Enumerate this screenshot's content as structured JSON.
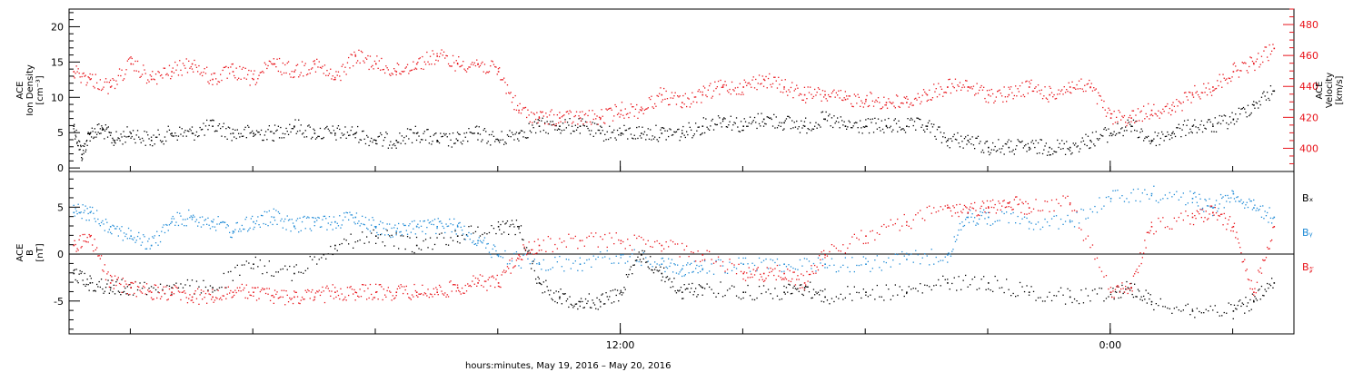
{
  "chart_data": [
    {
      "type": "scatter",
      "xlabel": "hours:minutes, May 19, 2016 – May 20, 2016",
      "x_range_hours": [
        -1.5,
        28.5
      ],
      "x_ticks": [
        {
          "hour": 12,
          "label": "12:00"
        },
        {
          "hour": 24,
          "label": "0:00"
        }
      ],
      "left_axis": {
        "label_lines": [
          "ACE",
          "Ion Density",
          "[cm⁻³]"
        ],
        "ylim": [
          -0.5,
          22.5
        ],
        "ticks": [
          0,
          5,
          10,
          15,
          20
        ]
      },
      "right_axis": {
        "label_lines": [
          "ACE",
          "Velocity",
          "[km/s]"
        ],
        "ylim": [
          385,
          490
        ],
        "ticks": [
          400,
          420,
          440,
          460,
          480
        ],
        "color": "#e8141b"
      },
      "series": [
        {
          "axis": "left",
          "color": "#000000",
          "points": [
            [
              -1.4,
              6
            ],
            [
              -1.2,
              2
            ],
            [
              -1.0,
              5
            ],
            [
              -0.7,
              5.5
            ],
            [
              -0.4,
              4
            ],
            [
              0,
              5
            ],
            [
              0.5,
              4
            ],
            [
              1,
              5
            ],
            [
              1.5,
              5
            ],
            [
              2,
              6
            ],
            [
              2.5,
              5
            ],
            [
              3,
              5
            ],
            [
              3.5,
              5
            ],
            [
              4,
              6
            ],
            [
              4.5,
              5
            ],
            [
              5,
              5
            ],
            [
              5.5,
              5
            ],
            [
              6,
              4
            ],
            [
              6.5,
              4
            ],
            [
              7,
              5
            ],
            [
              7.5,
              4
            ],
            [
              8,
              4
            ],
            [
              8.5,
              5
            ],
            [
              9,
              4
            ],
            [
              9.5,
              5
            ],
            [
              10,
              6
            ],
            [
              10.5,
              6
            ],
            [
              11,
              6
            ],
            [
              11.5,
              5
            ],
            [
              12,
              5
            ],
            [
              12.5,
              5
            ],
            [
              13,
              5
            ],
            [
              13.5,
              5
            ],
            [
              14,
              6
            ],
            [
              14.5,
              7
            ],
            [
              15,
              6
            ],
            [
              15.5,
              7
            ],
            [
              16,
              6.5
            ],
            [
              16.5,
              6
            ],
            [
              17,
              7
            ],
            [
              17.5,
              6
            ],
            [
              18,
              6
            ],
            [
              18.5,
              6
            ],
            [
              19,
              6
            ],
            [
              19.5,
              6
            ],
            [
              20,
              4
            ],
            [
              20.5,
              4
            ],
            [
              21,
              3
            ],
            [
              21.5,
              3
            ],
            [
              22,
              3
            ],
            [
              22.5,
              3
            ],
            [
              23,
              3
            ],
            [
              23.5,
              4
            ],
            [
              24,
              5
            ],
            [
              24.5,
              6
            ],
            [
              25,
              4
            ],
            [
              25.5,
              5
            ],
            [
              26,
              6
            ],
            [
              26.5,
              6
            ],
            [
              27,
              7
            ],
            [
              27.5,
              9
            ],
            [
              28,
              11
            ]
          ]
        },
        {
          "axis": "right",
          "color": "#e8141b",
          "points": [
            [
              -1.4,
              450
            ],
            [
              -1.0,
              445
            ],
            [
              -0.5,
              440
            ],
            [
              0,
              455
            ],
            [
              0.5,
              445
            ],
            [
              1,
              450
            ],
            [
              1.5,
              455
            ],
            [
              2,
              445
            ],
            [
              2.5,
              450
            ],
            [
              3,
              445
            ],
            [
              3.5,
              455
            ],
            [
              4,
              450
            ],
            [
              4.5,
              455
            ],
            [
              5,
              445
            ],
            [
              5.5,
              460
            ],
            [
              6,
              455
            ],
            [
              6.5,
              450
            ],
            [
              7,
              455
            ],
            [
              7.5,
              460
            ],
            [
              8,
              455
            ],
            [
              8.5,
              455
            ],
            [
              9,
              450
            ],
            [
              9.5,
              425
            ],
            [
              10,
              420
            ],
            [
              10.5,
              420
            ],
            [
              11,
              420
            ],
            [
              11.5,
              420
            ],
            [
              12,
              425
            ],
            [
              12.5,
              425
            ],
            [
              13,
              435
            ],
            [
              13.5,
              430
            ],
            [
              14,
              435
            ],
            [
              14.5,
              440
            ],
            [
              15,
              440
            ],
            [
              15.5,
              445
            ],
            [
              16,
              440
            ],
            [
              16.5,
              435
            ],
            [
              17,
              435
            ],
            [
              17.5,
              432
            ],
            [
              18,
              432
            ],
            [
              18.5,
              430
            ],
            [
              19,
              430
            ],
            [
              19.5,
              435
            ],
            [
              20,
              440
            ],
            [
              20.5,
              440
            ],
            [
              21,
              435
            ],
            [
              21.5,
              435
            ],
            [
              22,
              440
            ],
            [
              22.5,
              435
            ],
            [
              23,
              440
            ],
            [
              23.5,
              440
            ],
            [
              24,
              420
            ],
            [
              24.5,
              420
            ],
            [
              25,
              425
            ],
            [
              25.5,
              425
            ],
            [
              26,
              435
            ],
            [
              26.5,
              440
            ],
            [
              27,
              450
            ],
            [
              27.5,
              455
            ],
            [
              28,
              465
            ]
          ]
        }
      ]
    },
    {
      "type": "scatter",
      "left_axis": {
        "label_lines": [
          "ACE",
          "B",
          "[nT]"
        ],
        "ylim": [
          -8.5,
          8.8
        ],
        "ticks": [
          -5,
          0,
          5
        ]
      },
      "legend": [
        {
          "label": "Bₓ",
          "color": "#000000"
        },
        {
          "label": "Bᵧ",
          "color": "#1e8ad6"
        },
        {
          "label": "B𝓏",
          "color": "#e8141b"
        }
      ],
      "zero_line": true,
      "series": [
        {
          "color": "#000000",
          "points": [
            [
              -1.4,
              -2
            ],
            [
              -1.0,
              -3
            ],
            [
              -0.5,
              -3.5
            ],
            [
              0,
              -3.5
            ],
            [
              1,
              -3.5
            ],
            [
              2,
              -3.5
            ],
            [
              3,
              -1
            ],
            [
              4,
              -2
            ],
            [
              5,
              1
            ],
            [
              6,
              2
            ],
            [
              7,
              1
            ],
            [
              8,
              2
            ],
            [
              9,
              3
            ],
            [
              9.5,
              3
            ],
            [
              10,
              -3
            ],
            [
              10.5,
              -4.5
            ],
            [
              11,
              -5
            ],
            [
              11.5,
              -5
            ],
            [
              12,
              -4
            ],
            [
              12.5,
              0
            ],
            [
              13,
              -2
            ],
            [
              13.5,
              -4
            ],
            [
              14,
              -3.5
            ],
            [
              15,
              -4
            ],
            [
              16,
              -4
            ],
            [
              16.5,
              -3.5
            ],
            [
              17,
              -4.5
            ],
            [
              18,
              -4
            ],
            [
              19,
              -4
            ],
            [
              20,
              -3
            ],
            [
              21,
              -3
            ],
            [
              22,
              -4
            ],
            [
              23,
              -4.5
            ],
            [
              24,
              -4
            ],
            [
              24.5,
              -3.5
            ],
            [
              25,
              -5
            ],
            [
              26,
              -6
            ],
            [
              27,
              -6
            ],
            [
              27.5,
              -5
            ],
            [
              28,
              -3
            ]
          ]
        },
        {
          "color": "#1e8ad6",
          "points": [
            [
              -1.4,
              4.5
            ],
            [
              -1.0,
              4.5
            ],
            [
              -0.5,
              3
            ],
            [
              0,
              2
            ],
            [
              0.5,
              1
            ],
            [
              1,
              3.5
            ],
            [
              1.5,
              4
            ],
            [
              2,
              3.5
            ],
            [
              2.5,
              2.5
            ],
            [
              3,
              3.5
            ],
            [
              3.5,
              4
            ],
            [
              4,
              3
            ],
            [
              4.5,
              3.5
            ],
            [
              5,
              3.5
            ],
            [
              5.5,
              4
            ],
            [
              6,
              3
            ],
            [
              6.5,
              2.5
            ],
            [
              7,
              3
            ],
            [
              7.5,
              3
            ],
            [
              8,
              3
            ],
            [
              8.5,
              1.5
            ],
            [
              9,
              0
            ],
            [
              10,
              -1
            ],
            [
              11,
              -1
            ],
            [
              12,
              0
            ],
            [
              13,
              -1
            ],
            [
              13.5,
              -1.5
            ],
            [
              14,
              -1.5
            ],
            [
              15,
              -1
            ],
            [
              16,
              -1
            ],
            [
              17,
              -1
            ],
            [
              18,
              -1
            ],
            [
              19,
              -0.5
            ],
            [
              20,
              0
            ],
            [
              20.5,
              4
            ],
            [
              21,
              4
            ],
            [
              22,
              3.5
            ],
            [
              23,
              3.5
            ],
            [
              24,
              6
            ],
            [
              25,
              6.5
            ],
            [
              26,
              6
            ],
            [
              26.5,
              5
            ],
            [
              27,
              6.5
            ],
            [
              27.5,
              5
            ],
            [
              28,
              4
            ]
          ]
        },
        {
          "color": "#e8141b",
          "points": [
            [
              -1.4,
              1
            ],
            [
              -1.0,
              2
            ],
            [
              -0.5,
              -3
            ],
            [
              0,
              -3.5
            ],
            [
              0.5,
              -4
            ],
            [
              1,
              -4
            ],
            [
              1.5,
              -4.5
            ],
            [
              2,
              -4.5
            ],
            [
              2.5,
              -4
            ],
            [
              3,
              -4
            ],
            [
              3.5,
              -4.5
            ],
            [
              4,
              -4.5
            ],
            [
              4.5,
              -4.5
            ],
            [
              5,
              -4
            ],
            [
              5.5,
              -4
            ],
            [
              6,
              -4
            ],
            [
              6.5,
              -4
            ],
            [
              7,
              -4
            ],
            [
              7.5,
              -4
            ],
            [
              8,
              -3.5
            ],
            [
              8.5,
              -3
            ],
            [
              9,
              -3
            ],
            [
              9.5,
              0
            ],
            [
              10,
              1
            ],
            [
              11,
              1.5
            ],
            [
              12,
              1.5
            ],
            [
              13,
              1
            ],
            [
              14,
              0
            ],
            [
              15,
              -2
            ],
            [
              15.5,
              -2
            ],
            [
              16,
              -2
            ],
            [
              16.5,
              -3
            ],
            [
              17,
              0
            ],
            [
              18,
              2
            ],
            [
              19,
              3.5
            ],
            [
              20,
              5
            ],
            [
              20.5,
              4.5
            ],
            [
              21,
              5
            ],
            [
              21.5,
              5.5
            ],
            [
              22,
              5
            ],
            [
              23,
              5.5
            ],
            [
              24,
              -4
            ],
            [
              24.5,
              -3.5
            ],
            [
              25,
              3
            ],
            [
              26,
              4
            ],
            [
              26.5,
              4.5
            ],
            [
              27,
              3
            ],
            [
              27.5,
              -4
            ],
            [
              28,
              3
            ]
          ]
        }
      ]
    }
  ]
}
